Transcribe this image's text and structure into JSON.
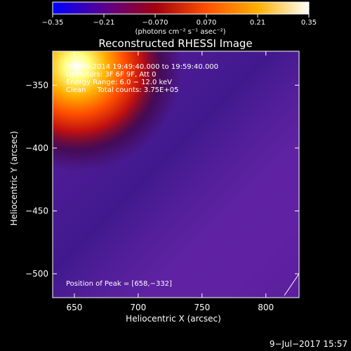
{
  "chart_data": {
    "type": "heatmap",
    "title": "Reconstructed RHESSI Image",
    "xlabel": "Heliocentric X (arcsec)",
    "ylabel": "Heliocentric Y (arcsec)",
    "xlim": [
      633,
      826
    ],
    "ylim": [
      -519,
      -323
    ],
    "x_ticks": [
      650,
      700,
      750,
      800
    ],
    "y_ticks": [
      -350,
      -400,
      -450,
      -500
    ],
    "x_tick_labels": [
      "650",
      "700",
      "750",
      "800"
    ],
    "y_tick_labels": [
      "−350",
      "−400",
      "−450",
      "−500"
    ],
    "colorbar": {
      "range": [
        -0.35,
        0.35
      ],
      "tick_values": [
        -0.35,
        -0.21,
        -0.07,
        0.07,
        0.21,
        0.35
      ],
      "tick_labels": [
        "−0.35",
        "−0.21",
        "−0.070",
        "0.070",
        "0.21",
        "0.35"
      ],
      "units_label": "(photons cm⁻² s⁻¹ asec⁻²)",
      "colors": [
        "#0000ff",
        "#5a0090",
        "#a00010",
        "#ff5000",
        "#ffb000",
        "#ffffff"
      ]
    },
    "annotations": [
      "28-Feb-2014 19:49:40.000 to 19:59:40.000",
      "Detectors: 3F 6F 9F, Att 0",
      "Energy Range: 6.0 − 12.0 keV",
      "Clean     Total counts: 3.75E+05"
    ],
    "peak_label": "Position of Peak = [658,−332]",
    "peak_position": [
      658,
      -332
    ],
    "hot_source_center": [
      652,
      -335
    ],
    "background_color": "#5a1e9c",
    "hot_colors": [
      "#ffffff",
      "#ffff80",
      "#ffb000",
      "#ff5000",
      "#c01010",
      "#400030"
    ]
  },
  "footer": {
    "date": "9−Jul−2017 15:57"
  }
}
